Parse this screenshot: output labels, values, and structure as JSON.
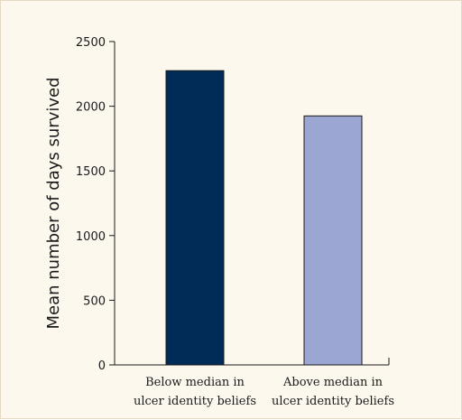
{
  "chart_data": {
    "type": "bar",
    "categories": [
      [
        "Below median in",
        "ulcer identity beliefs"
      ],
      [
        "Above median in",
        "ulcer identity beliefs"
      ]
    ],
    "values": [
      2275,
      1925
    ],
    "ylabel": "Mean number of days survived",
    "xlabel": "",
    "ylim": [
      0,
      2500
    ],
    "yticks": [
      0,
      500,
      1000,
      1500,
      2000,
      2500
    ],
    "grid": false,
    "legend": "none",
    "colors": [
      "#022c58",
      "#9ba7d2"
    ],
    "background": "#fdf8ee"
  }
}
